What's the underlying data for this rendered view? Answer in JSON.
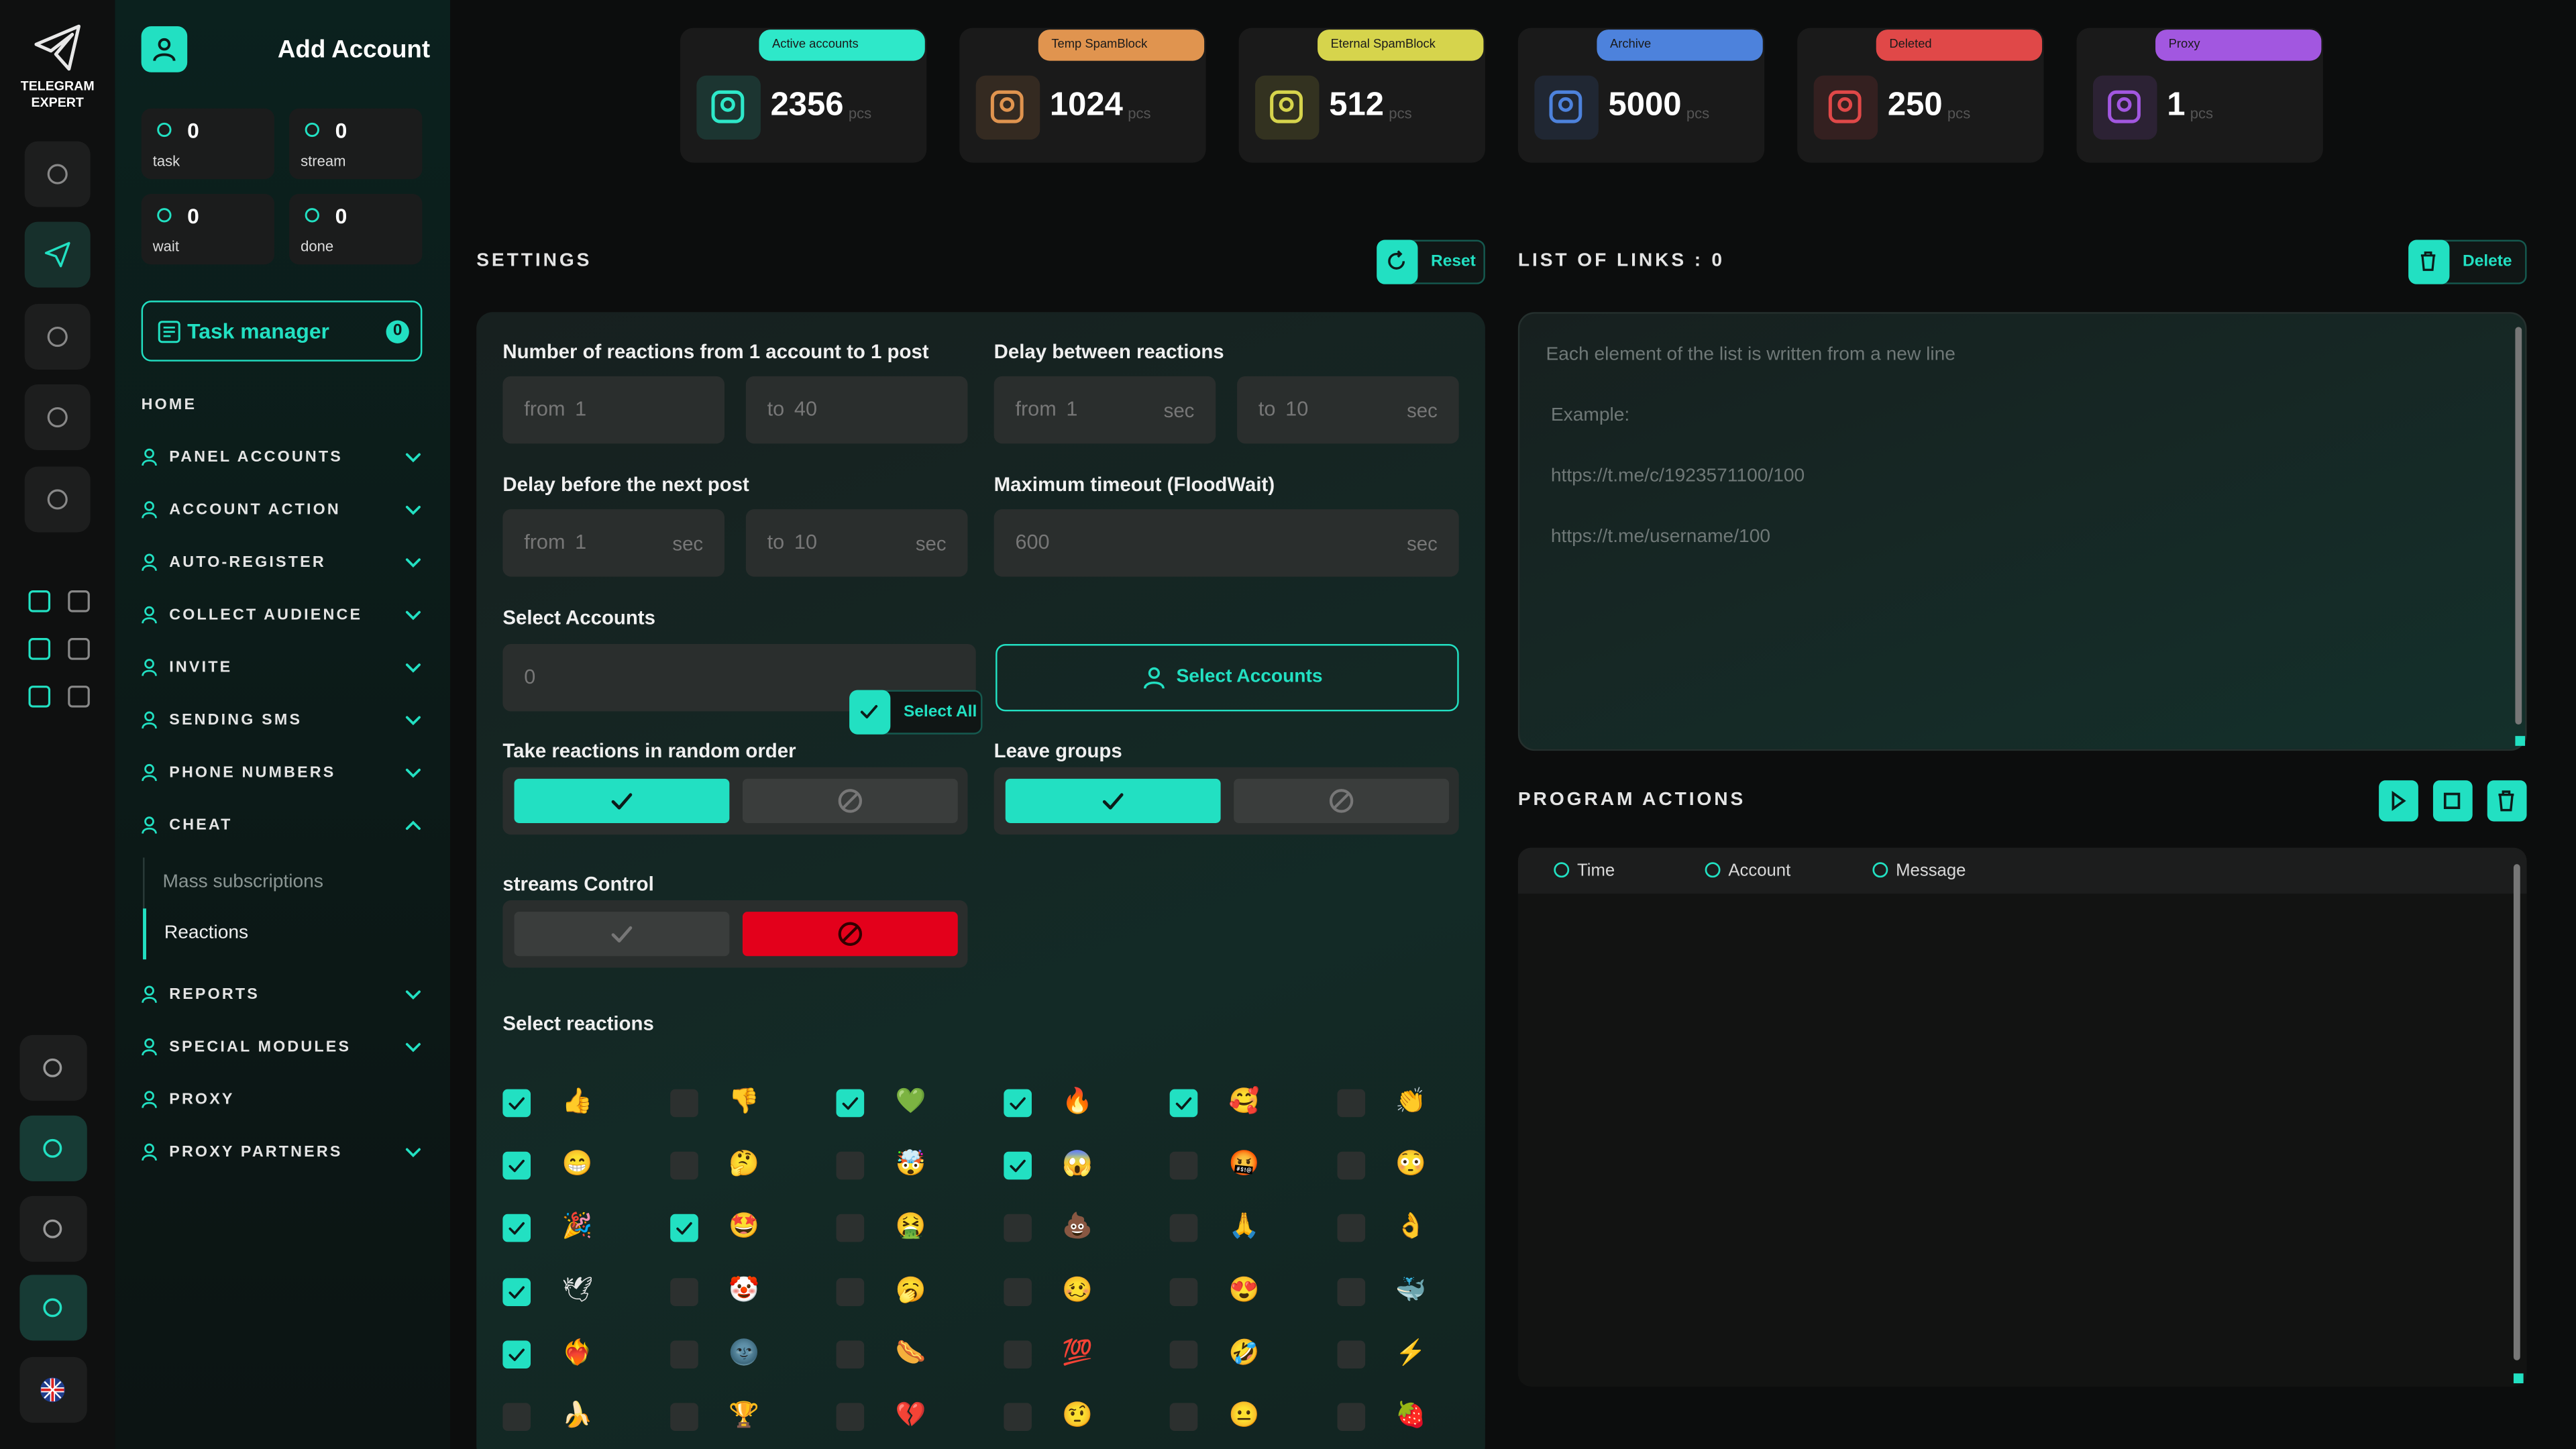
{
  "brand": [
    "TELEGRAM",
    "EXPERT"
  ],
  "header": {
    "title": "Add Account"
  },
  "counters": [
    {
      "value": 0,
      "label": "task"
    },
    {
      "value": 0,
      "label": "stream"
    },
    {
      "value": 0,
      "label": "wait"
    },
    {
      "value": 0,
      "label": "done"
    }
  ],
  "task_manager": {
    "label": "Task manager",
    "count": 0
  },
  "nav": [
    {
      "label": "HOME"
    },
    {
      "label": "PANEL ACCOUNTS",
      "expandable": true
    },
    {
      "label": "ACCOUNT ACTION",
      "expandable": true
    },
    {
      "label": "AUTO-REGISTER",
      "expandable": true
    },
    {
      "label": "COLLECT AUDIENCE",
      "expandable": true
    },
    {
      "label": "INVITE",
      "expandable": true
    },
    {
      "label": "SENDING SMS",
      "expandable": true
    },
    {
      "label": "PHONE NUMBERS",
      "expandable": true
    },
    {
      "label": "CHEAT",
      "expandable": true,
      "expanded": true,
      "children": [
        "Mass subscriptions",
        "Reactions"
      ],
      "active": 1
    },
    {
      "label": "REPORTS",
      "expandable": true
    },
    {
      "label": "SPECIAL MODULES",
      "expandable": true
    },
    {
      "label": "PROXY"
    },
    {
      "label": "PROXY PARTNERS",
      "expandable": true
    }
  ],
  "stats": [
    {
      "badge": "Active accounts",
      "value": 2356,
      "unit": "pcs",
      "color": "#2ee8c9"
    },
    {
      "badge": "Temp SpamBlock",
      "value": 1024,
      "unit": "pcs",
      "color": "#e0944f"
    },
    {
      "badge": "Eternal SpamBlock",
      "value": 512,
      "unit": "pcs",
      "color": "#d6d44c"
    },
    {
      "badge": "Archive",
      "value": 5000,
      "unit": "pcs",
      "color": "#4d82dc"
    },
    {
      "badge": "Deleted",
      "value": 250,
      "unit": "pcs",
      "color": "#e04848"
    },
    {
      "badge": "Proxy",
      "value": 1,
      "unit": "pcs",
      "color": "#a257e0"
    }
  ],
  "settings": {
    "title": "SETTINGS",
    "reset": "Reset",
    "fields": [
      {
        "label": "Number of reactions from 1 account to 1 post",
        "inputs": [
          {
            "prefix": "from",
            "value": 1
          },
          {
            "prefix": "to",
            "value": 40
          }
        ]
      },
      {
        "label": "Delay between reactions",
        "inputs": [
          {
            "prefix": "from",
            "value": 1,
            "suffix": "sec"
          },
          {
            "prefix": "to",
            "value": 10,
            "suffix": "sec"
          }
        ]
      },
      {
        "label": "Delay before the next post",
        "inputs": [
          {
            "prefix": "from",
            "value": 1,
            "suffix": "sec"
          },
          {
            "prefix": "to",
            "value": 10,
            "suffix": "sec"
          }
        ]
      },
      {
        "label": "Maximum timeout (FloodWait)",
        "inputs": [
          {
            "value": 600,
            "suffix": "sec"
          }
        ]
      }
    ],
    "select_accounts": {
      "label": "Select Accounts",
      "value": 0,
      "button": "Select Accounts"
    },
    "toggles": [
      {
        "label": "Take reactions in random order",
        "on": true
      },
      {
        "label": "Leave groups",
        "on": true
      },
      {
        "label": "streams Control",
        "on": false
      }
    ],
    "reactions": {
      "label": "Select reactions",
      "select_all": "Select All",
      "rows": [
        [
          {
            "emoji": "👍",
            "checked": true
          },
          {
            "emoji": "👎",
            "checked": false
          },
          {
            "emoji": "💚",
            "checked": true
          },
          {
            "emoji": "🔥",
            "checked": true
          },
          {
            "emoji": "🥰",
            "checked": true
          },
          {
            "emoji": "👏",
            "checked": false
          }
        ],
        [
          {
            "emoji": "😁",
            "checked": true
          },
          {
            "emoji": "🤔",
            "checked": false
          },
          {
            "emoji": "🤯",
            "checked": false
          },
          {
            "emoji": "😱",
            "checked": true
          },
          {
            "emoji": "🤬",
            "checked": false
          },
          {
            "emoji": "😳",
            "checked": false
          }
        ],
        [
          {
            "emoji": "🎉",
            "checked": true
          },
          {
            "emoji": "🤩",
            "checked": true
          },
          {
            "emoji": "🤮",
            "checked": false
          },
          {
            "emoji": "💩",
            "checked": false
          },
          {
            "emoji": "🙏",
            "checked": false
          },
          {
            "emoji": "👌",
            "checked": false
          }
        ],
        [
          {
            "emoji": "🕊",
            "checked": true
          },
          {
            "emoji": "🤡",
            "checked": false
          },
          {
            "emoji": "🥱",
            "checked": false
          },
          {
            "emoji": "🥴",
            "checked": false
          },
          {
            "emoji": "😍",
            "checked": false
          },
          {
            "emoji": "🐳",
            "checked": false
          }
        ],
        [
          {
            "emoji": "❤️‍🔥",
            "checked": true
          },
          {
            "emoji": "🌚",
            "checked": false
          },
          {
            "emoji": "🌭",
            "checked": false
          },
          {
            "emoji": "💯",
            "checked": false
          },
          {
            "emoji": "🤣",
            "checked": false
          },
          {
            "emoji": "⚡",
            "checked": false
          }
        ],
        [
          {
            "emoji": "🍌",
            "checked": false
          },
          {
            "emoji": "🏆",
            "checked": false
          },
          {
            "emoji": "💔",
            "checked": false
          },
          {
            "emoji": "🤨",
            "checked": false
          },
          {
            "emoji": "😐",
            "checked": false
          },
          {
            "emoji": "🍓",
            "checked": false
          }
        ]
      ]
    }
  },
  "links": {
    "title": "LIST OF LINKS :",
    "count": 0,
    "delete": "Delete",
    "placeholder": [
      "Each element of the list is written from a new line",
      "Example:",
      "https://t.me/c/1923571100/100",
      "https://t.me/username/100"
    ]
  },
  "actions": {
    "title": "PROGRAM ACTIONS",
    "columns": [
      "Time",
      "Account",
      "Message"
    ]
  }
}
